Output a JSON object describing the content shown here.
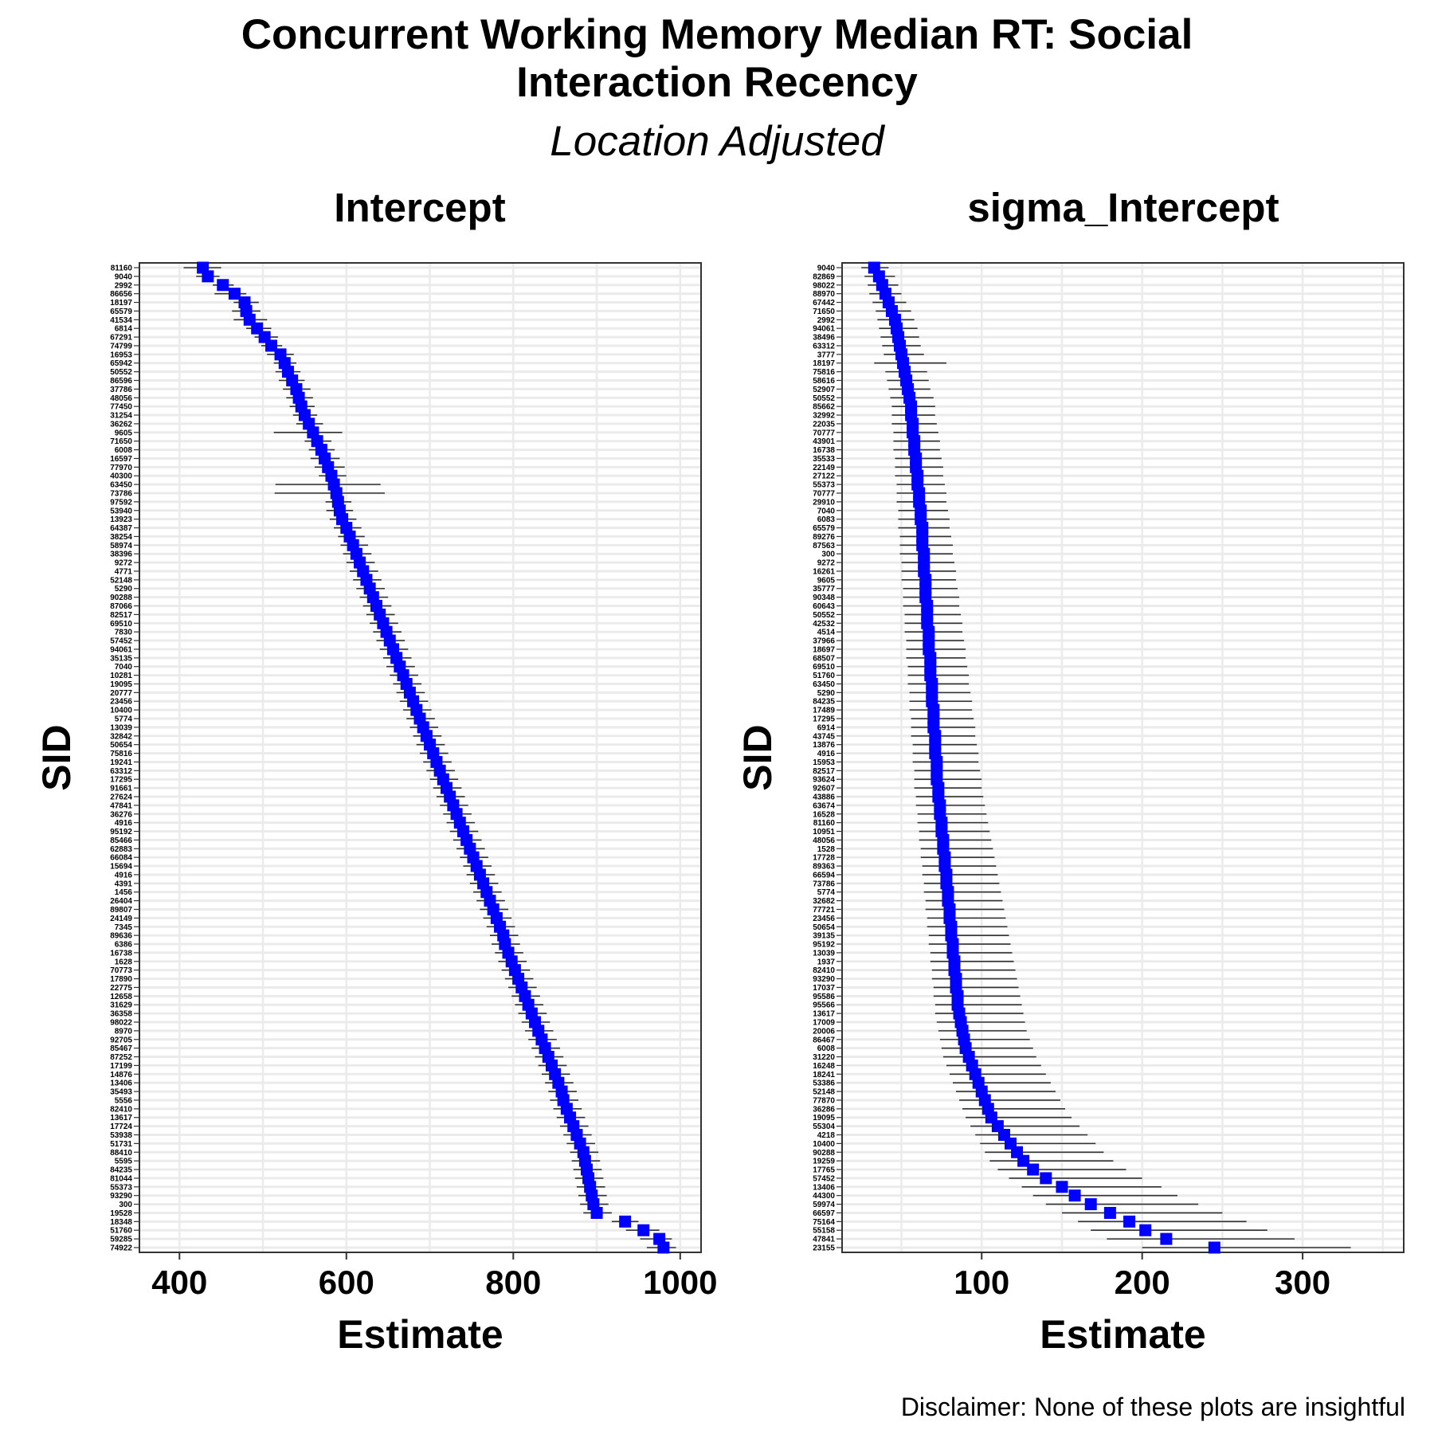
{
  "title_lines": [
    "Concurrent Working Memory Median RT: Social",
    "Interaction Recency"
  ],
  "subtitle": "Location Adjusted",
  "caption": "Disclaimer: None of these plots are insightful",
  "colors": {
    "point": "#0000ff",
    "errorbar": "#333333",
    "grid": "#ebebeb",
    "panel_border": "#333333"
  },
  "chart_data": [
    {
      "type": "forest",
      "title": "Intercept",
      "xlabel": "Estimate",
      "ylabel": "SID",
      "xlim": [
        352,
        1025
      ],
      "xticks": [
        400,
        600,
        800,
        1000
      ],
      "grid": true,
      "n_subjects": 114,
      "sid_labels": [
        "81160",
        "9040",
        "2992",
        "86656",
        "18197",
        "65579",
        "41534",
        "6814",
        "67291",
        "74799",
        "16953",
        "65942",
        "50552",
        "86596",
        "37786",
        "48056",
        "77450",
        "31254",
        "36262",
        "9605",
        "71650",
        "6008",
        "16597",
        "77970",
        "40300",
        "63450",
        "73786",
        "97592",
        "53940",
        "13923",
        "64387",
        "38254",
        "58974",
        "38396",
        "9272",
        "4771",
        "52148",
        "5290",
        "90288",
        "87066",
        "82517",
        "69510",
        "7830",
        "57452",
        "94061",
        "35135",
        "7040",
        "10281",
        "19095",
        "20777",
        "23456",
        "10400",
        "5774",
        "13039",
        "32842",
        "50654",
        "75816",
        "19241",
        "63312",
        "17295",
        "91661",
        "27624",
        "47841",
        "36276",
        "4916",
        "95192",
        "85466",
        "62883",
        "66084",
        "15694",
        "4916",
        "4391",
        "1456",
        "26404",
        "89807",
        "24149",
        "7345",
        "89636",
        "6386",
        "16738",
        "1628",
        "70773",
        "17890",
        "22775",
        "12658",
        "31629",
        "36358",
        "98022",
        "8970",
        "92705",
        "85467",
        "87252",
        "17199",
        "14876",
        "13406",
        "35493",
        "5556",
        "82410",
        "13617",
        "17724",
        "53938",
        "51731",
        "88410",
        "5595",
        "84235",
        "81044",
        "55373",
        "93290",
        "300",
        "19528",
        "18348",
        "51760",
        "59285",
        "74922"
      ],
      "estimates": [
        428,
        434,
        452,
        466,
        478,
        480,
        484,
        493,
        502,
        510,
        521,
        526,
        530,
        535,
        540,
        543,
        546,
        550,
        555,
        560,
        565,
        570,
        574,
        578,
        582,
        585,
        588,
        590,
        592,
        595,
        600,
        604,
        608,
        612,
        616,
        620,
        624,
        628,
        632,
        636,
        640,
        644,
        648,
        652,
        656,
        660,
        664,
        668,
        672,
        676,
        680,
        684,
        688,
        692,
        696,
        700,
        704,
        708,
        712,
        716,
        720,
        724,
        728,
        732,
        736,
        740,
        744,
        748,
        752,
        756,
        760,
        764,
        768,
        772,
        776,
        780,
        784,
        788,
        790,
        794,
        798,
        802,
        806,
        810,
        814,
        818,
        822,
        826,
        830,
        834,
        838,
        842,
        846,
        850,
        854,
        858,
        860,
        864,
        868,
        872,
        876,
        880,
        884,
        886,
        888,
        890,
        892,
        894,
        896,
        900,
        934,
        956,
        975,
        980
      ],
      "lower": [
        405,
        420,
        440,
        442,
        465,
        463,
        465,
        480,
        490,
        498,
        505,
        513,
        515,
        519,
        524,
        528,
        532,
        536,
        540,
        513,
        550,
        555,
        557,
        562,
        567,
        515,
        514,
        575,
        576,
        580,
        585,
        590,
        593,
        596,
        600,
        604,
        608,
        612,
        616,
        620,
        624,
        628,
        632,
        636,
        640,
        644,
        648,
        652,
        656,
        660,
        664,
        668,
        672,
        676,
        680,
        684,
        688,
        692,
        696,
        700,
        704,
        708,
        712,
        716,
        720,
        724,
        728,
        732,
        736,
        740,
        744,
        748,
        752,
        756,
        760,
        764,
        768,
        772,
        774,
        778,
        782,
        786,
        790,
        794,
        798,
        802,
        806,
        810,
        814,
        818,
        822,
        826,
        830,
        834,
        838,
        842,
        844,
        848,
        852,
        856,
        860,
        864,
        868,
        870,
        872,
        874,
        876,
        878,
        880,
        884,
        918,
        935,
        952,
        960
      ],
      "upper": [
        450,
        448,
        465,
        480,
        495,
        497,
        505,
        510,
        518,
        523,
        537,
        540,
        545,
        550,
        557,
        560,
        562,
        565,
        572,
        595,
        582,
        586,
        592,
        598,
        600,
        641,
        646,
        606,
        608,
        612,
        618,
        622,
        626,
        630,
        634,
        638,
        642,
        646,
        650,
        654,
        658,
        662,
        666,
        670,
        674,
        678,
        682,
        686,
        690,
        694,
        698,
        702,
        706,
        710,
        714,
        718,
        722,
        726,
        730,
        734,
        738,
        742,
        746,
        750,
        754,
        758,
        762,
        766,
        770,
        774,
        778,
        782,
        786,
        790,
        794,
        798,
        802,
        806,
        808,
        812,
        816,
        820,
        824,
        828,
        832,
        836,
        840,
        844,
        848,
        852,
        856,
        860,
        864,
        868,
        872,
        876,
        878,
        882,
        886,
        890,
        894,
        898,
        902,
        904,
        906,
        908,
        910,
        912,
        914,
        918,
        950,
        975,
        990,
        995
      ]
    },
    {
      "type": "forest",
      "title": "sigma_Intercept",
      "xlabel": "Estimate",
      "ylabel": "SID",
      "xlim": [
        13,
        363
      ],
      "xticks": [
        100,
        200,
        300
      ],
      "grid": true,
      "n_subjects": 114,
      "sid_labels": [
        "9040",
        "82869",
        "98022",
        "88970",
        "67442",
        "71650",
        "2992",
        "94061",
        "38496",
        "63312",
        "3777",
        "18197",
        "75816",
        "58616",
        "52907",
        "50552",
        "85662",
        "32992",
        "22035",
        "70777",
        "43901",
        "16738",
        "35533",
        "22149",
        "27122",
        "55373",
        "70777",
        "29910",
        "7040",
        "6083",
        "65579",
        "89276",
        "87563",
        "300",
        "9272",
        "16261",
        "9605",
        "35777",
        "90348",
        "60643",
        "50552",
        "42532",
        "4514",
        "37966",
        "18697",
        "68507",
        "69510",
        "51760",
        "63450",
        "5290",
        "84235",
        "17489",
        "17295",
        "6914",
        "43745",
        "13876",
        "4916",
        "15953",
        "82517",
        "93624",
        "92607",
        "43886",
        "63674",
        "16528",
        "81160",
        "10951",
        "48056",
        "1528",
        "17728",
        "89363",
        "66594",
        "73786",
        "5774",
        "32682",
        "77721",
        "23456",
        "50654",
        "39135",
        "95192",
        "13039",
        "1937",
        "82410",
        "93290",
        "17037",
        "95586",
        "95566",
        "13617",
        "17009",
        "20006",
        "86467",
        "6008",
        "31220",
        "16248",
        "18241",
        "53386",
        "52148",
        "77870",
        "36286",
        "19095",
        "55304",
        "4218",
        "10400",
        "90288",
        "19259",
        "17765",
        "57452",
        "13406",
        "44300",
        "59974",
        "66597",
        "75164",
        "55158",
        "47841",
        "23155"
      ],
      "estimates": [
        33,
        36,
        38,
        40,
        42,
        44,
        46,
        47,
        48,
        49,
        50,
        51,
        52,
        53,
        54,
        55,
        56,
        56,
        57,
        57,
        58,
        58,
        59,
        59,
        60,
        60,
        61,
        61,
        62,
        62,
        63,
        63,
        63,
        64,
        64,
        64,
        65,
        65,
        65,
        66,
        66,
        66,
        67,
        67,
        67,
        68,
        68,
        68,
        69,
        69,
        69,
        70,
        70,
        70,
        71,
        71,
        71,
        72,
        72,
        72,
        73,
        73,
        74,
        74,
        75,
        75,
        76,
        76,
        77,
        77,
        78,
        78,
        79,
        79,
        80,
        80,
        81,
        81,
        82,
        82,
        83,
        83,
        84,
        84,
        85,
        85,
        86,
        87,
        88,
        89,
        90,
        92,
        94,
        96,
        98,
        100,
        102,
        104,
        106,
        110,
        114,
        118,
        122,
        126,
        132,
        140,
        150,
        158,
        168,
        180,
        192,
        202,
        215,
        245
      ],
      "lower": [
        25,
        27,
        29,
        30,
        32,
        34,
        35,
        36,
        37,
        38,
        39,
        33,
        40,
        41,
        42,
        43,
        44,
        44,
        44,
        45,
        45,
        45,
        46,
        46,
        46,
        47,
        47,
        47,
        48,
        48,
        48,
        49,
        49,
        49,
        50,
        50,
        50,
        51,
        51,
        51,
        52,
        52,
        52,
        53,
        53,
        53,
        54,
        54,
        54,
        55,
        55,
        55,
        56,
        56,
        56,
        57,
        57,
        57,
        58,
        58,
        58,
        59,
        59,
        60,
        60,
        61,
        61,
        62,
        62,
        63,
        63,
        64,
        64,
        65,
        65,
        66,
        66,
        67,
        67,
        68,
        68,
        69,
        69,
        70,
        70,
        71,
        71,
        72,
        73,
        74,
        75,
        76,
        78,
        80,
        82,
        84,
        86,
        88,
        90,
        93,
        96,
        99,
        102,
        105,
        110,
        117,
        125,
        132,
        140,
        150,
        160,
        168,
        178,
        200
      ],
      "upper": [
        42,
        46,
        48,
        50,
        53,
        56,
        58,
        60,
        61,
        62,
        64,
        78,
        66,
        67,
        68,
        70,
        71,
        71,
        72,
        73,
        74,
        74,
        75,
        76,
        76,
        77,
        78,
        78,
        79,
        80,
        80,
        81,
        82,
        82,
        83,
        84,
        84,
        85,
        86,
        86,
        87,
        88,
        88,
        89,
        90,
        90,
        91,
        92,
        92,
        93,
        94,
        94,
        95,
        96,
        96,
        97,
        98,
        98,
        99,
        100,
        100,
        101,
        102,
        103,
        104,
        105,
        106,
        107,
        108,
        109,
        110,
        111,
        112,
        113,
        114,
        115,
        116,
        117,
        118,
        119,
        120,
        121,
        122,
        123,
        124,
        125,
        126,
        127,
        128,
        130,
        132,
        134,
        137,
        140,
        143,
        146,
        149,
        152,
        156,
        161,
        166,
        171,
        176,
        182,
        190,
        200,
        212,
        222,
        235,
        250,
        265,
        278,
        295,
        330
      ]
    }
  ]
}
